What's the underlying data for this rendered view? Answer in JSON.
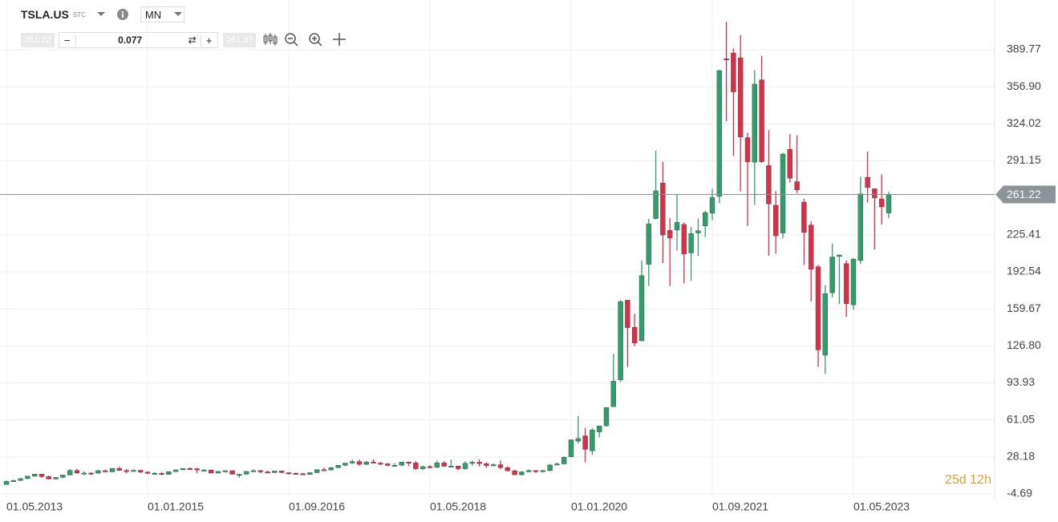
{
  "toolbar": {
    "symbol": "TSLA.US",
    "exchange": "STC",
    "timeframe": "MN",
    "sell": "261.22",
    "volume": "0.077",
    "buy": "261.37"
  },
  "countdown": "25d 12h",
  "chart_data": {
    "type": "candlestick",
    "x": [
      "01.05.2013",
      "01.06.2013",
      "01.07.2013",
      "01.08.2013",
      "01.09.2013",
      "01.10.2013",
      "01.11.2013",
      "01.12.2013",
      "01.01.2014",
      "01.02.2014",
      "01.03.2014",
      "01.04.2014",
      "01.05.2014",
      "01.06.2014",
      "01.07.2014",
      "01.08.2014",
      "01.09.2014",
      "01.10.2014",
      "01.11.2014",
      "01.12.2014",
      "01.01.2015",
      "01.02.2015",
      "01.03.2015",
      "01.04.2015",
      "01.05.2015",
      "01.06.2015",
      "01.07.2015",
      "01.08.2015",
      "01.09.2015",
      "01.10.2015",
      "01.11.2015",
      "01.12.2015",
      "01.01.2016",
      "01.02.2016",
      "01.03.2016",
      "01.04.2016",
      "01.05.2016",
      "01.06.2016",
      "01.07.2016",
      "01.08.2016",
      "01.09.2016",
      "01.10.2016",
      "01.11.2016",
      "01.12.2016",
      "01.01.2017",
      "01.02.2017",
      "01.03.2017",
      "01.04.2017",
      "01.05.2017",
      "01.06.2017",
      "01.07.2017",
      "01.08.2017",
      "01.09.2017",
      "01.10.2017",
      "01.11.2017",
      "01.12.2017",
      "01.01.2018",
      "01.02.2018",
      "01.03.2018",
      "01.04.2018",
      "01.05.2018",
      "01.06.2018",
      "01.07.2018",
      "01.08.2018",
      "01.09.2018",
      "01.10.2018",
      "01.11.2018",
      "01.12.2018",
      "01.01.2019",
      "01.02.2019",
      "01.03.2019",
      "01.04.2019",
      "01.05.2019",
      "01.06.2019",
      "01.07.2019",
      "01.08.2019",
      "01.09.2019",
      "01.10.2019",
      "01.11.2019",
      "01.12.2019",
      "01.01.2020",
      "01.02.2020",
      "01.03.2020",
      "01.04.2020",
      "01.05.2020",
      "01.06.2020",
      "01.07.2020",
      "01.08.2020",
      "01.09.2020",
      "01.10.2020",
      "01.11.2020",
      "01.12.2020",
      "01.01.2021",
      "01.02.2021",
      "01.03.2021",
      "01.04.2021",
      "01.05.2021",
      "01.06.2021",
      "01.07.2021",
      "01.08.2021",
      "01.09.2021",
      "01.10.2021",
      "01.11.2021",
      "01.12.2021",
      "01.01.2022",
      "01.02.2022",
      "01.03.2022",
      "01.04.2022",
      "01.05.2022",
      "01.06.2022",
      "01.07.2022",
      "01.08.2022",
      "01.09.2022",
      "01.10.2022",
      "01.11.2022",
      "01.12.2022",
      "01.01.2023",
      "01.02.2023",
      "01.03.2023",
      "01.04.2023",
      "01.05.2023",
      "01.06.2023",
      "01.07.2023",
      "01.08.2023",
      "01.09.2023",
      "01.10.2023"
    ],
    "open": [
      3.6,
      6.5,
      7.2,
      8.9,
      11.2,
      12.9,
      10.7,
      8.5,
      10.0,
      12.1,
      16.2,
      13.9,
      13.9,
      13.8,
      16.0,
      14.9,
      18.0,
      16.2,
      16.1,
      16.3,
      14.8,
      13.6,
      13.6,
      12.6,
      15.1,
      16.7,
      17.9,
      17.7,
      16.6,
      16.6,
      13.8,
      15.3,
      16.0,
      12.8,
      12.8,
      15.3,
      16.0,
      14.9,
      14.2,
      15.7,
      14.2,
      13.6,
      13.3,
      12.6,
      14.2,
      16.9,
      16.6,
      18.6,
      20.8,
      22.7,
      24.1,
      21.6,
      23.7,
      22.7,
      22.1,
      20.6,
      20.8,
      23.6,
      22.9,
      17.7,
      19.6,
      18.9,
      22.9,
      19.9,
      20.1,
      17.7,
      22.5,
      23.5,
      22.2,
      20.5,
      21.3,
      18.7,
      15.9,
      12.3,
      14.9,
      16.1,
      15.0,
      16.1,
      21.0,
      22.0,
      28.3,
      42.2,
      46.9,
      33.6,
      50.3,
      55.8,
      72.8,
      96.6,
      167.4,
      143.3,
      131.3,
      199.2,
      239.8,
      271.4,
      229.3,
      229.6,
      234.6,
      209.3,
      227.0,
      233.3,
      244.7,
      259.5,
      381.7,
      386.9,
      382.6,
      311.7,
      289.9,
      363.0,
      286.9,
      251.7,
      227.0,
      301.3,
      272.6,
      254.5,
      234.1,
      197.1,
      118.5,
      173.9,
      206.2,
      199.9,
      163.2,
      202.6,
      276.5,
      266.3,
      257.3,
      244.8
    ],
    "high": [
      7.3,
      8.0,
      9.4,
      11.4,
      12.9,
      12.9,
      11.5,
      10.3,
      12.4,
      17.4,
      17.6,
      15.3,
      14.4,
      16.7,
      16.8,
      18.3,
      19.4,
      17.5,
      17.1,
      16.6,
      15.3,
      14.7,
      14.6,
      15.4,
      16.9,
      18.2,
      18.8,
      18.5,
      17.5,
      16.8,
      15.6,
      16.3,
      16.0,
      13.3,
      15.5,
      17.3,
      16.6,
      15.9,
      15.8,
      15.8,
      14.5,
      14.3,
      13.9,
      14.4,
      17.2,
      18.6,
      19.3,
      20.9,
      22.9,
      25.9,
      25.8,
      24.7,
      25.9,
      23.9,
      22.6,
      22.8,
      23.9,
      24.0,
      24.4,
      20.4,
      20.9,
      24.9,
      24.5,
      25.8,
      20.4,
      24.3,
      24.9,
      25.9,
      23.5,
      22.5,
      25.0,
      19.8,
      16.8,
      15.2,
      17.1,
      16.2,
      16.6,
      21.9,
      23.3,
      28.7,
      43.5,
      64.6,
      54.0,
      53.8,
      56.0,
      72.3,
      119.7,
      167.5,
      167.5,
      155.3,
      202.6,
      239.6,
      300.1,
      290.1,
      240.4,
      261.0,
      236.4,
      232.5,
      240.0,
      246.8,
      266.3,
      371.7,
      414.5,
      390.9,
      402.7,
      315.9,
      371.6,
      384.3,
      318.5,
      264.2,
      298.3,
      314.7,
      313.8,
      257.5,
      237.4,
      198.9,
      180.7,
      217.7,
      207.8,
      202.7,
      204.5,
      277.0,
      299.3,
      266.5,
      279.0,
      263.6
    ],
    "low": [
      3.6,
      5.9,
      7.0,
      8.6,
      10.4,
      9.6,
      8.3,
      8.4,
      9.3,
      11.9,
      13.0,
      12.0,
      12.0,
      13.0,
      14.5,
      14.8,
      15.9,
      13.7,
      15.4,
      13.8,
      12.9,
      12.6,
      12.1,
      12.6,
      14.9,
      16.5,
      17.2,
      13.7,
      16.1,
      13.8,
      13.8,
      14.4,
      12.7,
      9.9,
      12.2,
      14.9,
      13.8,
      13.8,
      13.9,
      14.1,
      12.6,
      13.0,
      12.3,
      12.3,
      14.0,
      16.3,
      16.2,
      18.0,
      20.1,
      22.1,
      20.5,
      21.0,
      22.5,
      21.0,
      19.9,
      20.5,
      20.1,
      20.1,
      16.7,
      16.9,
      18.0,
      18.3,
      19.5,
      19.0,
      16.4,
      16.9,
      20.4,
      19.6,
      18.6,
      19.9,
      17.4,
      15.3,
      12.2,
      11.8,
      14.8,
      14.1,
      14.3,
      15.4,
      20.9,
      21.8,
      28.1,
      40.2,
      23.4,
      30.0,
      45.5,
      55.0,
      72.7,
      94.7,
      108.0,
      126.4,
      131.0,
      180.0,
      239.1,
      200.3,
      179.8,
      211.4,
      182.3,
      184.6,
      206.6,
      223.3,
      238.4,
      253.5,
      326.2,
      295.4,
      264.0,
      233.3,
      252.0,
      289.4,
      206.9,
      208.7,
      222.3,
      271.8,
      262.5,
      198.6,
      166.2,
      108.2,
      101.8,
      169.9,
      163.9,
      152.4,
      158.8,
      199.4,
      254.1,
      212.4,
      234.6,
      240.0
    ],
    "close": [
      6.5,
      7.2,
      8.9,
      11.2,
      12.9,
      10.7,
      8.5,
      10.0,
      12.1,
      16.2,
      13.9,
      13.9,
      13.8,
      16.0,
      14.9,
      18.0,
      16.2,
      16.1,
      16.3,
      14.8,
      13.6,
      13.6,
      12.6,
      15.1,
      16.7,
      17.9,
      17.7,
      16.6,
      16.6,
      13.8,
      15.3,
      16.0,
      12.8,
      12.8,
      15.3,
      16.0,
      14.9,
      14.2,
      15.7,
      14.2,
      13.6,
      13.3,
      12.6,
      14.2,
      16.9,
      16.6,
      18.6,
      20.8,
      22.7,
      24.1,
      21.6,
      23.7,
      22.7,
      22.1,
      20.6,
      20.8,
      23.6,
      22.9,
      17.7,
      19.6,
      18.9,
      22.9,
      19.9,
      20.1,
      17.7,
      22.5,
      23.5,
      22.2,
      20.5,
      21.3,
      18.7,
      15.9,
      12.3,
      14.9,
      16.1,
      15.0,
      16.1,
      21.0,
      22.0,
      27.9,
      43.4,
      44.5,
      34.9,
      52.1,
      55.7,
      72.0,
      95.4,
      166.1,
      143.0,
      129.3,
      189.2,
      235.2,
      264.5,
      225.2,
      222.6,
      236.5,
      208.4,
      226.6,
      229.1,
      245.2,
      258.5,
      371.3,
      381.6,
      352.3,
      312.2,
      290.1,
      359.2,
      290.3,
      252.8,
      224.5,
      297.1,
      275.6,
      265.3,
      227.5,
      194.7,
      123.2,
      173.2,
      205.7,
      207.5,
      164.3,
      203.9,
      261.8,
      267.4,
      258.1,
      250.2,
      261.22
    ],
    "up_color": "#2e9e6a",
    "down_color": "#d9304a",
    "ylim": [
      -8.96,
      433.9
    ],
    "yticks": [
      -4.69,
      28.18,
      61.05,
      93.93,
      {
        "value": 126.8,
        "label": "126.80"
      },
      159.67,
      192.54,
      225.41,
      291.15,
      324.02,
      {
        "value": 356.9,
        "label": "356.90"
      },
      389.77
    ],
    "xticks": [
      "01.05.2013",
      "01.01.2015",
      "01.09.2016",
      "01.05.2018",
      "01.01.2020",
      "01.09.2021",
      "01.05.2023"
    ],
    "last_price": {
      "value": 261.22,
      "label": "261.22"
    },
    "grid": true
  }
}
